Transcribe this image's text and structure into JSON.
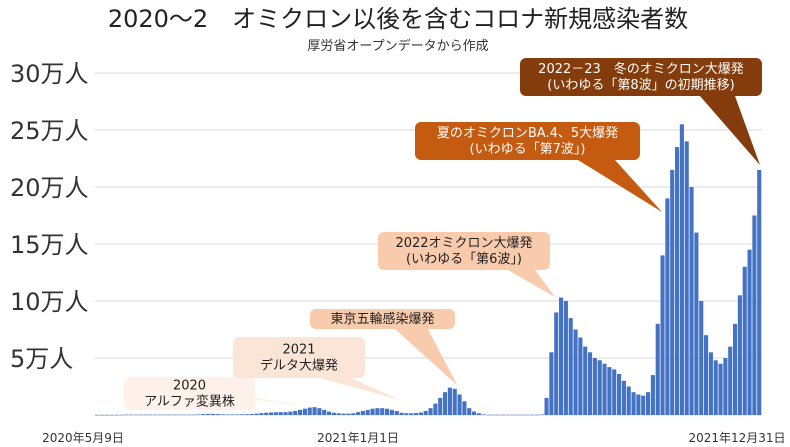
{
  "chart_data": {
    "type": "bar",
    "title": "2020～2　オミクロン以後を含むコロナ新規感染者数",
    "subtitle": "厚労省オープンデータから作成",
    "xlabel": "",
    "ylabel": "",
    "ylim": [
      0,
      300000
    ],
    "grid": true,
    "yticks": [
      {
        "value": 50000,
        "label": "5万人"
      },
      {
        "value": 100000,
        "label": "10万人"
      },
      {
        "value": 150000,
        "label": "15万人"
      },
      {
        "value": 200000,
        "label": "20万人"
      },
      {
        "value": 250000,
        "label": "25万人"
      },
      {
        "value": 300000,
        "label": "30万人"
      }
    ],
    "xticks": [
      "2020年5月9日",
      "2021年1月1日",
      "2021年12月31日"
    ],
    "series": [
      {
        "name": "新規感染者数",
        "color": "#4472c4",
        "values": [
          50,
          50,
          50,
          50,
          100,
          200,
          300,
          300,
          300,
          300,
          300,
          300,
          300,
          300,
          300,
          300,
          300,
          300,
          300,
          300,
          300,
          500,
          800,
          1000,
          1000,
          800,
          600,
          500,
          500,
          500,
          600,
          700,
          800,
          1200,
          1600,
          2000,
          2200,
          2400,
          2500,
          2500,
          3000,
          3500,
          4500,
          5500,
          6500,
          7000,
          6000,
          4500,
          3000,
          2000,
          1500,
          1200,
          1200,
          1500,
          2500,
          3500,
          4500,
          5500,
          6000,
          6000,
          5500,
          4500,
          3500,
          2000,
          1600,
          1500,
          1700,
          2200,
          3500,
          6000,
          10000,
          15000,
          20000,
          24000,
          23000,
          18000,
          12000,
          6000,
          3000,
          1500,
          500,
          200,
          200,
          200,
          200,
          200,
          200,
          200,
          200,
          200,
          200,
          200,
          500,
          15000,
          55000,
          90000,
          103000,
          100000,
          85000,
          75000,
          68000,
          60000,
          55000,
          50000,
          48000,
          45000,
          42000,
          40000,
          36000,
          30000,
          25000,
          20000,
          18000,
          17000,
          20000,
          35000,
          80000,
          140000,
          190000,
          215000,
          235000,
          255000,
          240000,
          200000,
          160000,
          100000,
          70000,
          55000,
          48000,
          45000,
          50000,
          60000,
          80000,
          105000,
          130000,
          145000,
          175000,
          215000
        ]
      }
    ],
    "annotations": [
      {
        "lines": [
          "2020",
          "アルファ変異株"
        ],
        "bg": "#fdf1e9",
        "fg": "#222222"
      },
      {
        "lines": [
          "2021",
          "デルタ大爆発"
        ],
        "bg": "#fbe5d6",
        "fg": "#222222"
      },
      {
        "lines": [
          "東京五輪感染爆発"
        ],
        "bg": "#f8cbad",
        "fg": "#222222"
      },
      {
        "lines": [
          "2022オミクロン大爆発",
          "(いわゆる「第6波」)"
        ],
        "bg": "#f8cbad",
        "fg": "#222222"
      },
      {
        "lines": [
          "夏のオミクロンBA.4、5大爆発",
          "(いわゆる「第7波」)"
        ],
        "bg": "#c55a11",
        "fg": "#ffffff"
      },
      {
        "lines": [
          "2022－23　冬のオミクロン大爆発",
          "(いわゆる「第8波」の初期推移)"
        ],
        "bg": "#843c0c",
        "fg": "#ffffff"
      }
    ]
  }
}
